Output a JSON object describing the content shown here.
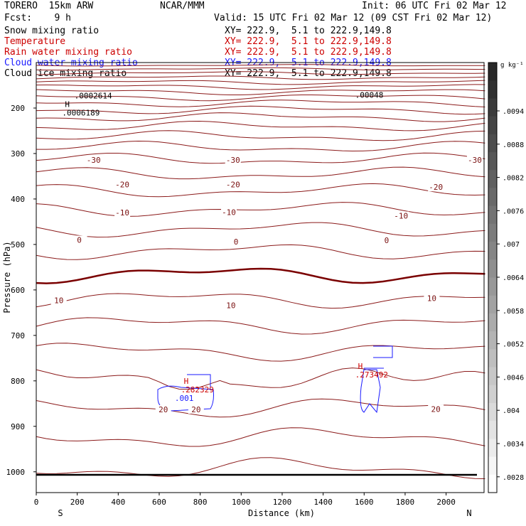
{
  "header": {
    "model": "TORERO  15km ARW",
    "fcst": "Fcst:    9 h",
    "org": "NCAR/MMM",
    "init": "Init: 06 UTC Fri 02 Mar 12",
    "valid": "Valid: 15 UTC Fri 02 Mar 12 (09 CST Fri 02 Mar 12)"
  },
  "fields": [
    {
      "name": "Snow mixing ratio",
      "xy": "XY= 222.9,  5.1 to 222.9,149.8",
      "color": "#000000"
    },
    {
      "name": "Temperature",
      "xy": "XY= 222.9,  5.1 to 222.9,149.8",
      "color": "#cc0000"
    },
    {
      "name": "Rain water mixing ratio",
      "xy": "XY= 222.9,  5.1 to 222.9,149.8",
      "color": "#cc0000"
    },
    {
      "name": "Cloud water mixing ratio",
      "xy": "XY= 222.9,  5.1 to 222.9,149.8",
      "color": "#1a1aff"
    },
    {
      "name": "Cloud ice mixing ratio",
      "xy": "XY= 222.9,  5.1 to 222.9,149.8",
      "color": "#000000"
    }
  ],
  "chart_data": {
    "type": "cross-section",
    "xlabel": "Distance (km)",
    "ylabel": "Pressure (hPa)",
    "x_ticks": [
      0,
      200,
      400,
      600,
      800,
      1000,
      1200,
      1400,
      1600,
      1800,
      2000
    ],
    "y_ticks": [
      200,
      300,
      400,
      500,
      600,
      700,
      800,
      900,
      1000
    ],
    "xlim": [
      0,
      2200
    ],
    "ylim": [
      1050,
      100
    ],
    "x_end_labels": {
      "left": "S",
      "right": "N"
    },
    "colorbar": {
      "unit": "g kg⁻¹",
      "labels": [
        ".0094",
        ".0088",
        ".0082",
        ".0076",
        ".007",
        ".0064",
        ".0058",
        ".0052",
        ".0046",
        ".004",
        ".0034",
        ".0028"
      ]
    },
    "temperature_labels": [
      {
        "text": "-30",
        "x": 280,
        "p": 317
      },
      {
        "text": "-30",
        "x": 960,
        "p": 317
      },
      {
        "text": "-30",
        "x": 2140,
        "p": 317
      },
      {
        "text": "-20",
        "x": 420,
        "p": 371
      },
      {
        "text": "-20",
        "x": 960,
        "p": 371
      },
      {
        "text": "-20",
        "x": 1950,
        "p": 377
      },
      {
        "text": "-10",
        "x": 420,
        "p": 433
      },
      {
        "text": "-10",
        "x": 940,
        "p": 432
      },
      {
        "text": "-10",
        "x": 1780,
        "p": 440
      },
      {
        "text": "0",
        "x": 210,
        "p": 493
      },
      {
        "text": "0",
        "x": 975,
        "p": 497
      },
      {
        "text": "0",
        "x": 1710,
        "p": 494
      },
      {
        "text": "10",
        "x": 110,
        "p": 626
      },
      {
        "text": "10",
        "x": 950,
        "p": 637
      },
      {
        "text": "10",
        "x": 1930,
        "p": 621
      },
      {
        "text": "20",
        "x": 620,
        "p": 866
      },
      {
        "text": "20",
        "x": 780,
        "p": 866
      },
      {
        "text": "20",
        "x": 1950,
        "p": 865
      }
    ],
    "extrema": [
      {
        "text": "H",
        "value": ".0006189",
        "x": 140,
        "p": 213,
        "color": "#000000"
      },
      {
        "text": "",
        "value": ".0002614",
        "x": 200,
        "p": 176,
        "color": "#000000"
      },
      {
        "text": "",
        "value": ".00048",
        "x": 1570,
        "p": 174,
        "color": "#000000"
      },
      {
        "text": "H",
        "value": ".282329",
        "x": 720,
        "p": 822,
        "color": "#cc0000"
      },
      {
        "text": "H",
        "value": ".273492",
        "x": 1570,
        "p": 789,
        "color": "#cc0000"
      },
      {
        "text": "",
        "value": ".001",
        "x": 690,
        "p": 841,
        "color": "#1a1aff"
      }
    ]
  }
}
